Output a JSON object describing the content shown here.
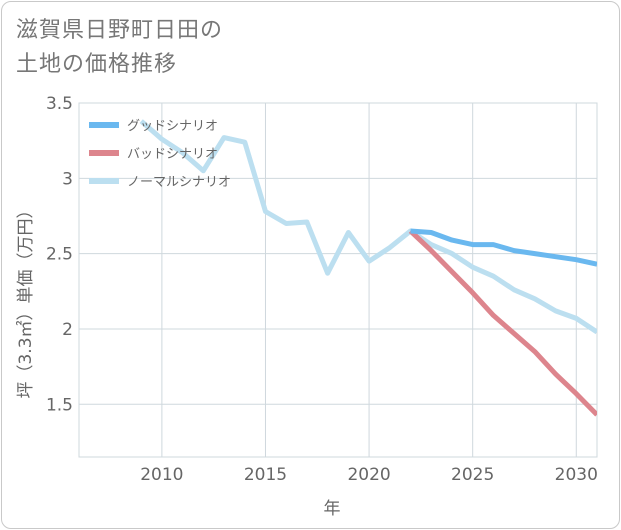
{
  "title_lines": [
    "滋賀県日野町日田の",
    "土地の価格推移"
  ],
  "chart_data": {
    "type": "line",
    "title": "滋賀県日野町日田の土地の価格推移",
    "xlabel": "年",
    "ylabel": "坪（3.3㎡）単価（万円）",
    "xlim": [
      2006,
      2031
    ],
    "ylim": [
      1.15,
      3.5
    ],
    "x_ticks": [
      2010,
      2015,
      2020,
      2025,
      2030
    ],
    "y_ticks": [
      1.5,
      2,
      2.5,
      3,
      3.5
    ],
    "x_tick_labels": [
      "2010",
      "2015",
      "2020",
      "2025",
      "2030"
    ],
    "y_tick_labels": [
      "1.5",
      "2",
      "2.5",
      "3",
      "3.5"
    ],
    "grid": true,
    "legend_position": "top-left",
    "series": [
      {
        "name": "グッドシナリオ",
        "color": "#6ab8ef",
        "x": [
          2022,
          2023,
          2024,
          2025,
          2026,
          2027,
          2028,
          2029,
          2030,
          2031
        ],
        "y": [
          2.65,
          2.64,
          2.59,
          2.56,
          2.56,
          2.52,
          2.5,
          2.48,
          2.46,
          2.43
        ]
      },
      {
        "name": "バッドシナリオ",
        "color": "#dd858d",
        "x": [
          2022,
          2023,
          2024,
          2025,
          2026,
          2027,
          2028,
          2029,
          2030,
          2031
        ],
        "y": [
          2.65,
          2.52,
          2.38,
          2.24,
          2.09,
          1.97,
          1.85,
          1.7,
          1.57,
          1.43
        ]
      },
      {
        "name": "ノーマルシナリオ",
        "color": "#bcdff0",
        "x": [
          2009,
          2010,
          2011,
          2012,
          2013,
          2014,
          2015,
          2016,
          2017,
          2018,
          2019,
          2020,
          2021,
          2022,
          2023,
          2024,
          2025,
          2026,
          2027,
          2028,
          2029,
          2030,
          2031
        ],
        "y": [
          3.38,
          3.26,
          3.17,
          3.05,
          3.27,
          3.24,
          2.78,
          2.7,
          2.71,
          2.37,
          2.64,
          2.45,
          2.54,
          2.65,
          2.56,
          2.5,
          2.41,
          2.35,
          2.26,
          2.2,
          2.12,
          2.07,
          1.98
        ]
      }
    ]
  }
}
